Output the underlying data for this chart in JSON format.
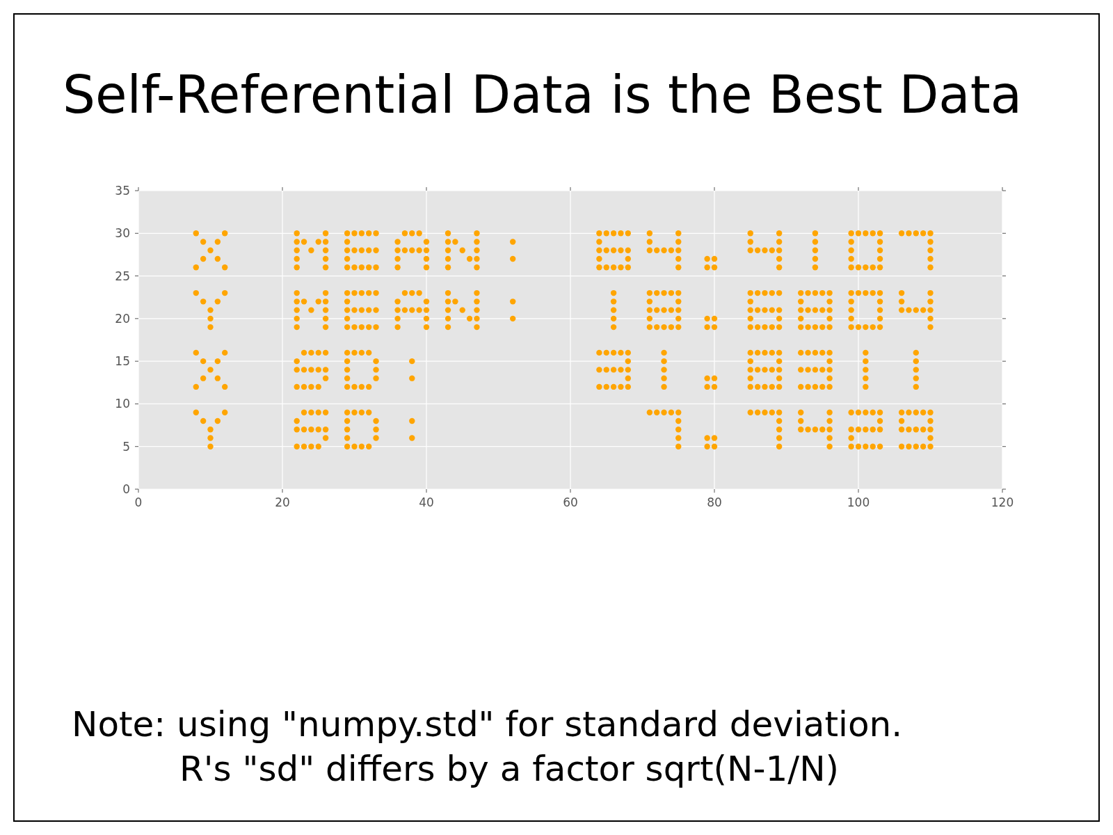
{
  "chart_data": {
    "type": "scatter",
    "title": "Self-Referential Data is the Best Data",
    "annotations": [
      "Note: using \"numpy.std\" for standard deviation.",
      "R's \"sd\" differs by a factor sqrt(N-1/N)"
    ],
    "xlim": [
      0,
      120
    ],
    "ylim": [
      0,
      35
    ],
    "xticks": [
      0,
      20,
      40,
      60,
      80,
      100,
      120
    ],
    "yticks": [
      0,
      5,
      10,
      15,
      20,
      25,
      30,
      35
    ],
    "grid": true,
    "marker": "circle",
    "series": [
      {
        "color": "#ffa500",
        "x": [
          8,
          12,
          9,
          11,
          10,
          9,
          11,
          8,
          12
        ],
        "values": [
          30,
          30,
          29,
          29,
          28,
          27,
          27,
          26,
          26
        ]
      },
      {
        "color": "#ffa500",
        "x": [
          22,
          26,
          22,
          23,
          25,
          26,
          22,
          24,
          26,
          22,
          26,
          22,
          26
        ],
        "values": [
          30,
          30,
          29,
          29,
          29,
          29,
          28,
          28,
          28,
          27,
          27,
          26,
          26
        ]
      },
      {
        "color": "#ffa500",
        "x": [
          29,
          30,
          31,
          32,
          33,
          29,
          29,
          30,
          31,
          32,
          33,
          29,
          29,
          30,
          31,
          32,
          33
        ],
        "values": [
          30,
          30,
          30,
          30,
          30,
          29,
          28,
          28,
          28,
          28,
          28,
          27,
          26,
          26,
          26,
          26,
          26
        ]
      },
      {
        "color": "#ffa500",
        "x": [
          37,
          38,
          39,
          36,
          40,
          36,
          37,
          38,
          39,
          40,
          36,
          40,
          36,
          40
        ],
        "values": [
          30,
          30,
          30,
          29,
          29,
          28,
          28,
          28,
          28,
          28,
          27,
          27,
          26,
          26
        ]
      },
      {
        "color": "#ffa500",
        "x": [
          43,
          47,
          43,
          44,
          47,
          43,
          45,
          47,
          43,
          46,
          47,
          43,
          47
        ],
        "values": [
          30,
          30,
          29,
          29,
          29,
          28,
          28,
          28,
          27,
          27,
          27,
          26,
          26
        ]
      },
      {
        "color": "#ffa500",
        "x": [
          52,
          52
        ],
        "values": [
          29,
          27
        ]
      },
      {
        "color": "#ffa500",
        "x": [
          64,
          65,
          66,
          67,
          68,
          64,
          64,
          65,
          66,
          67,
          68,
          64,
          68,
          64,
          65,
          66,
          67,
          68
        ],
        "values": [
          30,
          30,
          30,
          30,
          30,
          29,
          28,
          28,
          28,
          28,
          28,
          27,
          27,
          26,
          26,
          26,
          26,
          26
        ]
      },
      {
        "color": "#ffa500",
        "x": [
          71,
          75,
          71,
          75,
          71,
          72,
          73,
          74,
          75,
          75,
          75
        ],
        "values": [
          30,
          30,
          29,
          29,
          28,
          28,
          28,
          28,
          28,
          27,
          26
        ]
      },
      {
        "color": "#ffa500",
        "x": [
          79,
          80,
          79,
          80
        ],
        "values": [
          27,
          27,
          26,
          26
        ]
      },
      {
        "color": "#ffa500",
        "x": [
          85,
          89,
          85,
          89,
          85,
          86,
          87,
          88,
          89,
          89,
          89
        ],
        "values": [
          30,
          30,
          29,
          29,
          28,
          28,
          28,
          28,
          28,
          27,
          26
        ]
      },
      {
        "color": "#ffa500",
        "x": [
          94,
          94,
          94,
          94,
          94
        ],
        "values": [
          30,
          29,
          28,
          27,
          26
        ]
      },
      {
        "color": "#ffa500",
        "x": [
          99,
          100,
          101,
          102,
          103,
          99,
          103,
          99,
          103,
          99,
          103,
          99,
          100,
          101,
          102,
          103
        ],
        "values": [
          30,
          30,
          30,
          30,
          30,
          29,
          29,
          28,
          28,
          27,
          27,
          26,
          26,
          26,
          26,
          26
        ]
      },
      {
        "color": "#ffa500",
        "x": [
          106,
          107,
          108,
          109,
          110,
          110,
          110,
          110,
          110
        ],
        "values": [
          30,
          30,
          30,
          30,
          30,
          29,
          28,
          27,
          26
        ]
      },
      {
        "color": "#ffa500",
        "x": [
          8,
          12,
          9,
          11,
          10,
          10,
          10
        ],
        "values": [
          23,
          23,
          22,
          22,
          21,
          20,
          19
        ]
      },
      {
        "color": "#ffa500",
        "x": [
          22,
          26,
          22,
          23,
          25,
          26,
          22,
          24,
          26,
          22,
          26,
          22,
          26
        ],
        "values": [
          23,
          23,
          22,
          22,
          22,
          22,
          21,
          21,
          21,
          20,
          20,
          19,
          19
        ]
      },
      {
        "color": "#ffa500",
        "x": [
          29,
          30,
          31,
          32,
          33,
          29,
          29,
          30,
          31,
          32,
          33,
          29,
          29,
          30,
          31,
          32,
          33
        ],
        "values": [
          23,
          23,
          23,
          23,
          23,
          22,
          21,
          21,
          21,
          21,
          21,
          20,
          19,
          19,
          19,
          19,
          19
        ]
      },
      {
        "color": "#ffa500",
        "x": [
          37,
          38,
          39,
          36,
          40,
          36,
          37,
          38,
          39,
          40,
          36,
          40,
          36,
          40
        ],
        "values": [
          23,
          23,
          23,
          22,
          22,
          21,
          21,
          21,
          21,
          21,
          20,
          20,
          19,
          19
        ]
      },
      {
        "color": "#ffa500",
        "x": [
          43,
          47,
          43,
          44,
          47,
          43,
          45,
          47,
          43,
          46,
          47,
          43,
          47
        ],
        "values": [
          23,
          23,
          22,
          22,
          22,
          21,
          21,
          21,
          20,
          20,
          20,
          19,
          19
        ]
      },
      {
        "color": "#ffa500",
        "x": [
          52,
          52
        ],
        "values": [
          22,
          20
        ]
      },
      {
        "color": "#ffa500",
        "x": [
          66,
          66,
          66,
          66,
          66
        ],
        "values": [
          23,
          22,
          21,
          20,
          19
        ]
      },
      {
        "color": "#ffa500",
        "x": [
          71,
          72,
          73,
          74,
          75,
          71,
          75,
          71,
          72,
          73,
          74,
          75,
          71,
          75,
          71,
          72,
          73,
          74,
          75
        ],
        "values": [
          23,
          23,
          23,
          23,
          23,
          22,
          22,
          21,
          21,
          21,
          21,
          21,
          20,
          20,
          19,
          19,
          19,
          19,
          19
        ]
      },
      {
        "color": "#ffa500",
        "x": [
          79,
          80,
          79,
          80
        ],
        "values": [
          20,
          20,
          19,
          19
        ]
      },
      {
        "color": "#ffa500",
        "x": [
          85,
          86,
          87,
          88,
          89,
          85,
          85,
          86,
          87,
          88,
          89,
          85,
          89,
          85,
          86,
          87,
          88,
          89
        ],
        "values": [
          23,
          23,
          23,
          23,
          23,
          22,
          21,
          21,
          21,
          21,
          21,
          20,
          20,
          19,
          19,
          19,
          19,
          19
        ]
      },
      {
        "color": "#ffa500",
        "x": [
          92,
          93,
          94,
          95,
          96,
          92,
          96,
          92,
          93,
          94,
          95,
          96,
          92,
          96,
          92,
          93,
          94,
          95,
          96
        ],
        "values": [
          23,
          23,
          23,
          23,
          23,
          22,
          22,
          21,
          21,
          21,
          21,
          21,
          20,
          20,
          19,
          19,
          19,
          19,
          19
        ]
      },
      {
        "color": "#ffa500",
        "x": [
          99,
          100,
          101,
          102,
          103,
          99,
          103,
          99,
          103,
          99,
          103,
          99,
          100,
          101,
          102,
          103
        ],
        "values": [
          23,
          23,
          23,
          23,
          23,
          22,
          22,
          21,
          21,
          20,
          20,
          19,
          19,
          19,
          19,
          19
        ]
      },
      {
        "color": "#ffa500",
        "x": [
          106,
          110,
          106,
          110,
          106,
          107,
          108,
          109,
          110,
          110,
          110
        ],
        "values": [
          23,
          23,
          22,
          22,
          21,
          21,
          21,
          21,
          21,
          20,
          19
        ]
      },
      {
        "color": "#ffa500",
        "x": [
          8,
          12,
          9,
          11,
          10,
          9,
          11,
          8,
          12
        ],
        "values": [
          16,
          16,
          15,
          15,
          14,
          13,
          13,
          12,
          12
        ]
      },
      {
        "color": "#ffa500",
        "x": [
          23,
          24,
          25,
          26,
          22,
          22,
          23,
          24,
          25,
          26,
          26,
          22,
          23,
          24,
          25
        ],
        "values": [
          16,
          16,
          16,
          16,
          15,
          14,
          14,
          14,
          14,
          14,
          13,
          12,
          12,
          12,
          12
        ]
      },
      {
        "color": "#ffa500",
        "x": [
          29,
          30,
          31,
          32,
          29,
          33,
          29,
          33,
          29,
          33,
          29,
          30,
          31,
          32
        ],
        "values": [
          16,
          16,
          16,
          16,
          15,
          15,
          14,
          14,
          13,
          13,
          12,
          12,
          12,
          12
        ]
      },
      {
        "color": "#ffa500",
        "x": [
          38,
          38
        ],
        "values": [
          15,
          13
        ]
      },
      {
        "color": "#ffa500",
        "x": [
          64,
          65,
          66,
          67,
          68,
          68,
          64,
          65,
          66,
          67,
          68,
          68,
          64,
          65,
          66,
          67,
          68
        ],
        "values": [
          16,
          16,
          16,
          16,
          16,
          15,
          14,
          14,
          14,
          14,
          14,
          13,
          12,
          12,
          12,
          12,
          12
        ]
      },
      {
        "color": "#ffa500",
        "x": [
          73,
          73,
          73,
          73,
          73
        ],
        "values": [
          16,
          15,
          14,
          13,
          12
        ]
      },
      {
        "color": "#ffa500",
        "x": [
          79,
          80,
          79,
          80
        ],
        "values": [
          13,
          13,
          12,
          12
        ]
      },
      {
        "color": "#ffa500",
        "x": [
          85,
          86,
          87,
          88,
          89,
          85,
          89,
          85,
          86,
          87,
          88,
          89,
          85,
          89,
          85,
          86,
          87,
          88,
          89
        ],
        "values": [
          16,
          16,
          16,
          16,
          16,
          15,
          15,
          14,
          14,
          14,
          14,
          14,
          13,
          13,
          12,
          12,
          12,
          12,
          12
        ]
      },
      {
        "color": "#ffa500",
        "x": [
          92,
          93,
          94,
          95,
          96,
          96,
          92,
          93,
          94,
          95,
          96,
          96,
          92,
          93,
          94,
          95,
          96
        ],
        "values": [
          16,
          16,
          16,
          16,
          16,
          15,
          14,
          14,
          14,
          14,
          14,
          13,
          12,
          12,
          12,
          12,
          12
        ]
      },
      {
        "color": "#ffa500",
        "x": [
          101,
          101,
          101,
          101,
          101
        ],
        "values": [
          16,
          15,
          14,
          13,
          12
        ]
      },
      {
        "color": "#ffa500",
        "x": [
          108,
          108,
          108,
          108,
          108
        ],
        "values": [
          16,
          15,
          14,
          13,
          12
        ]
      },
      {
        "color": "#ffa500",
        "x": [
          8,
          12,
          9,
          11,
          10,
          10,
          10
        ],
        "values": [
          9,
          9,
          8,
          8,
          7,
          6,
          5
        ]
      },
      {
        "color": "#ffa500",
        "x": [
          23,
          24,
          25,
          26,
          22,
          22,
          23,
          24,
          25,
          26,
          26,
          22,
          23,
          24,
          25
        ],
        "values": [
          9,
          9,
          9,
          9,
          8,
          7,
          7,
          7,
          7,
          7,
          6,
          5,
          5,
          5,
          5
        ]
      },
      {
        "color": "#ffa500",
        "x": [
          29,
          30,
          31,
          32,
          29,
          33,
          29,
          33,
          29,
          33,
          29,
          30,
          31,
          32
        ],
        "values": [
          9,
          9,
          9,
          9,
          8,
          8,
          7,
          7,
          6,
          6,
          5,
          5,
          5,
          5
        ]
      },
      {
        "color": "#ffa500",
        "x": [
          38,
          38
        ],
        "values": [
          8,
          6
        ]
      },
      {
        "color": "#ffa500",
        "x": [
          71,
          72,
          73,
          74,
          75,
          75,
          75,
          75,
          75
        ],
        "values": [
          9,
          9,
          9,
          9,
          9,
          8,
          7,
          6,
          5
        ]
      },
      {
        "color": "#ffa500",
        "x": [
          79,
          80,
          79,
          80
        ],
        "values": [
          6,
          6,
          5,
          5
        ]
      },
      {
        "color": "#ffa500",
        "x": [
          85,
          86,
          87,
          88,
          89,
          89,
          89,
          89,
          89
        ],
        "values": [
          9,
          9,
          9,
          9,
          9,
          8,
          7,
          6,
          5
        ]
      },
      {
        "color": "#ffa500",
        "x": [
          92,
          96,
          92,
          96,
          92,
          93,
          94,
          95,
          96,
          96,
          96
        ],
        "values": [
          9,
          9,
          8,
          8,
          7,
          7,
          7,
          7,
          7,
          6,
          5
        ]
      },
      {
        "color": "#ffa500",
        "x": [
          99,
          100,
          101,
          102,
          103,
          103,
          99,
          100,
          101,
          102,
          103,
          99,
          99,
          100,
          101,
          102,
          103
        ],
        "values": [
          9,
          9,
          9,
          9,
          9,
          8,
          7,
          7,
          7,
          7,
          7,
          6,
          5,
          5,
          5,
          5,
          5
        ]
      },
      {
        "color": "#ffa500",
        "x": [
          106,
          107,
          108,
          109,
          110,
          106,
          110,
          106,
          107,
          108,
          109,
          110,
          110,
          106,
          107,
          108,
          109,
          110
        ],
        "values": [
          9,
          9,
          9,
          9,
          9,
          8,
          8,
          7,
          7,
          7,
          7,
          7,
          6,
          5,
          5,
          5,
          5,
          5
        ]
      }
    ]
  }
}
